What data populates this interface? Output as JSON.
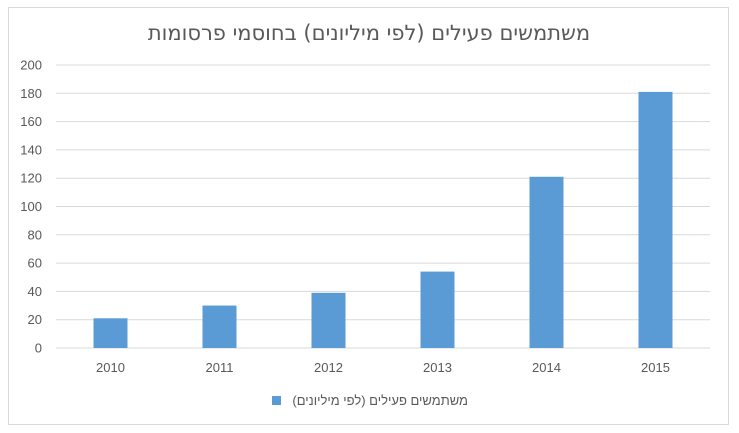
{
  "chart_data": {
    "type": "bar",
    "title": "משתמשים פעילים (לפי מיליונים) בחוסמי פרסומות",
    "categories": [
      "2010",
      "2011",
      "2012",
      "2013",
      "2014",
      "2015"
    ],
    "series": [
      {
        "name": "משתמשים פעילים (לפי מיליונים)",
        "values": [
          21,
          30,
          39,
          54,
          121,
          181
        ],
        "color": "#5b9bd5"
      }
    ],
    "ylim": [
      0,
      200
    ],
    "yticks": [
      "0",
      "20",
      "40",
      "60",
      "80",
      "100",
      "120",
      "140",
      "160",
      "180",
      "200"
    ],
    "grid": true,
    "legend_position": "bottom"
  }
}
